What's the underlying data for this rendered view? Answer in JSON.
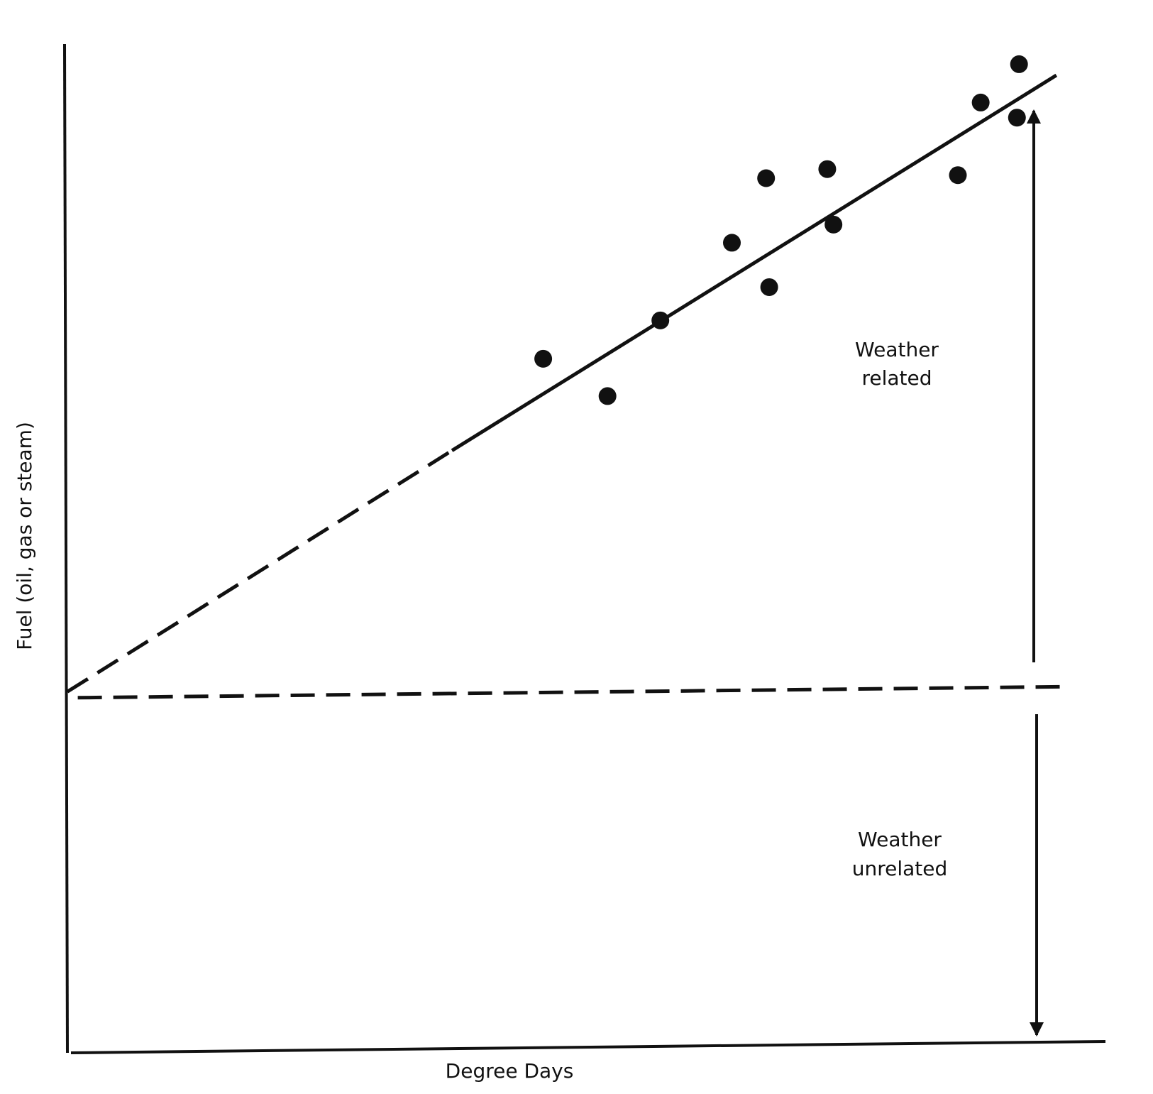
{
  "chart_data": {
    "type": "scatter",
    "x_label": "Degree Days",
    "y_label": "Fuel (oil, gas or steam)",
    "x": [
      45.9,
      52.1,
      57.2,
      64.1,
      67.4,
      67.7,
      73.3,
      73.9,
      85.9,
      88.1,
      91.6,
      91.8
    ],
    "values": [
      68.8,
      65.1,
      72.6,
      80.3,
      86.7,
      75.9,
      87.6,
      82.1,
      87.0,
      94.2,
      92.7,
      98.0
    ],
    "color": "#111111",
    "trend": {
      "x": [
        0,
        37.1,
        95.4
      ],
      "y": [
        35.8,
        59.7,
        96.9
      ]
    },
    "baseline": {
      "x": [
        1,
        96.8
      ],
      "y": [
        35.2,
        36.3
      ]
    },
    "xlim": [
      0,
      100
    ],
    "ylim": [
      0,
      100
    ],
    "annotations": {
      "related": [
        "Weather",
        "related"
      ],
      "unrelated": [
        "Weather",
        "unrelated"
      ]
    }
  }
}
